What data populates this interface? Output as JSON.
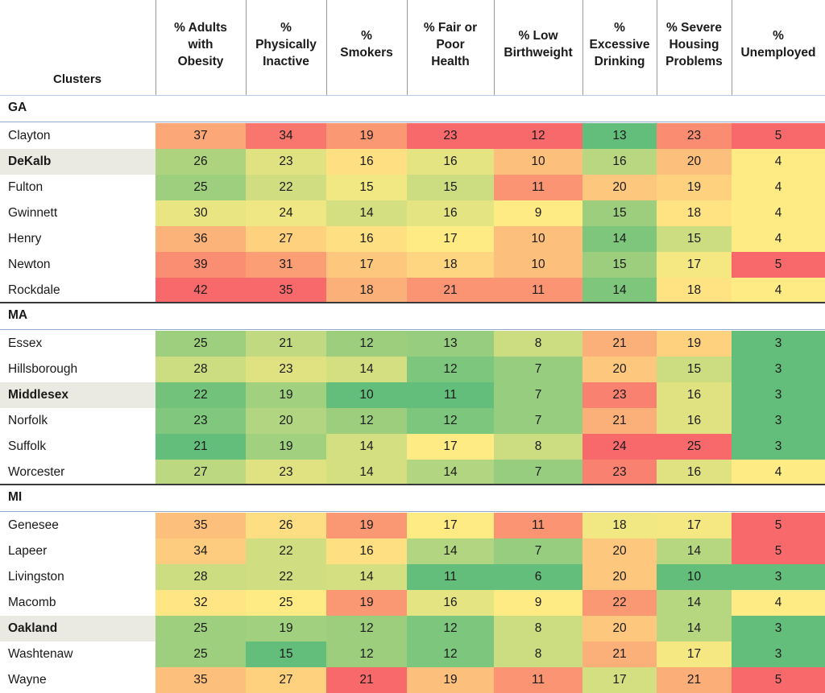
{
  "chart_data": {
    "type": "heatmap",
    "row_header": "Clusters",
    "columns": [
      "% Adults with Obesity",
      "% Physically Inactive",
      "% Smokers",
      "% Fair or Poor Health",
      "% Low Birthweight",
      "% Excessive Drinking",
      "% Severe Housing Problems",
      "% Unemployed"
    ],
    "column_labels_wrapped": [
      "% Adults\nwith\nObesity",
      "%\nPhysically\nInactive",
      "%\nSmokers",
      "% Fair or\nPoor\nHealth",
      "% Low\nBirthweight",
      "%\nExcessive\nDrinking",
      "% Severe\nHousing\nProblems",
      "%\nUnemployed"
    ],
    "groups": [
      {
        "name": "GA",
        "rows": [
          {
            "label": "Clayton",
            "bold": false,
            "values": [
              37,
              34,
              19,
              23,
              12,
              13,
              23,
              5
            ]
          },
          {
            "label": "DeKalb",
            "bold": true,
            "values": [
              26,
              23,
              16,
              16,
              10,
              16,
              20,
              4
            ]
          },
          {
            "label": "Fulton",
            "bold": false,
            "values": [
              25,
              22,
              15,
              15,
              11,
              20,
              19,
              4
            ]
          },
          {
            "label": "Gwinnett",
            "bold": false,
            "values": [
              30,
              24,
              14,
              16,
              9,
              15,
              18,
              4
            ]
          },
          {
            "label": "Henry",
            "bold": false,
            "values": [
              36,
              27,
              16,
              17,
              10,
              14,
              15,
              4
            ]
          },
          {
            "label": "Newton",
            "bold": false,
            "values": [
              39,
              31,
              17,
              18,
              10,
              15,
              17,
              5
            ]
          },
          {
            "label": "Rockdale",
            "bold": false,
            "values": [
              42,
              35,
              18,
              21,
              11,
              14,
              18,
              4
            ]
          }
        ]
      },
      {
        "name": "MA",
        "rows": [
          {
            "label": "Essex",
            "bold": false,
            "values": [
              25,
              21,
              12,
              13,
              8,
              21,
              19,
              3
            ]
          },
          {
            "label": "Hillsborough",
            "bold": false,
            "values": [
              28,
              23,
              14,
              12,
              7,
              20,
              15,
              3
            ]
          },
          {
            "label": "Middlesex",
            "bold": true,
            "values": [
              22,
              19,
              10,
              11,
              7,
              23,
              16,
              3
            ]
          },
          {
            "label": "Norfolk",
            "bold": false,
            "values": [
              23,
              20,
              12,
              12,
              7,
              21,
              16,
              3
            ]
          },
          {
            "label": "Suffolk",
            "bold": false,
            "values": [
              21,
              19,
              14,
              17,
              8,
              24,
              25,
              3
            ]
          },
          {
            "label": "Worcester",
            "bold": false,
            "values": [
              27,
              23,
              14,
              14,
              7,
              23,
              16,
              4
            ]
          }
        ]
      },
      {
        "name": "MI",
        "rows": [
          {
            "label": "Genesee",
            "bold": false,
            "values": [
              35,
              26,
              19,
              17,
              11,
              18,
              17,
              5
            ]
          },
          {
            "label": "Lapeer",
            "bold": false,
            "values": [
              34,
              22,
              16,
              14,
              7,
              20,
              14,
              5
            ]
          },
          {
            "label": "Livingston",
            "bold": false,
            "values": [
              28,
              22,
              14,
              11,
              6,
              20,
              10,
              3
            ]
          },
          {
            "label": "Macomb",
            "bold": false,
            "values": [
              32,
              25,
              19,
              16,
              9,
              22,
              14,
              4
            ]
          },
          {
            "label": "Oakland",
            "bold": true,
            "values": [
              25,
              19,
              12,
              12,
              8,
              20,
              14,
              3
            ]
          },
          {
            "label": "Washtenaw",
            "bold": false,
            "values": [
              25,
              15,
              12,
              12,
              8,
              21,
              17,
              3
            ]
          },
          {
            "label": "Wayne",
            "bold": false,
            "values": [
              35,
              27,
              21,
              19,
              11,
              17,
              21,
              5
            ]
          }
        ]
      }
    ],
    "color_scale": {
      "low": "#63be7b",
      "mid": "#ffeb84",
      "high": "#f8696b"
    }
  }
}
